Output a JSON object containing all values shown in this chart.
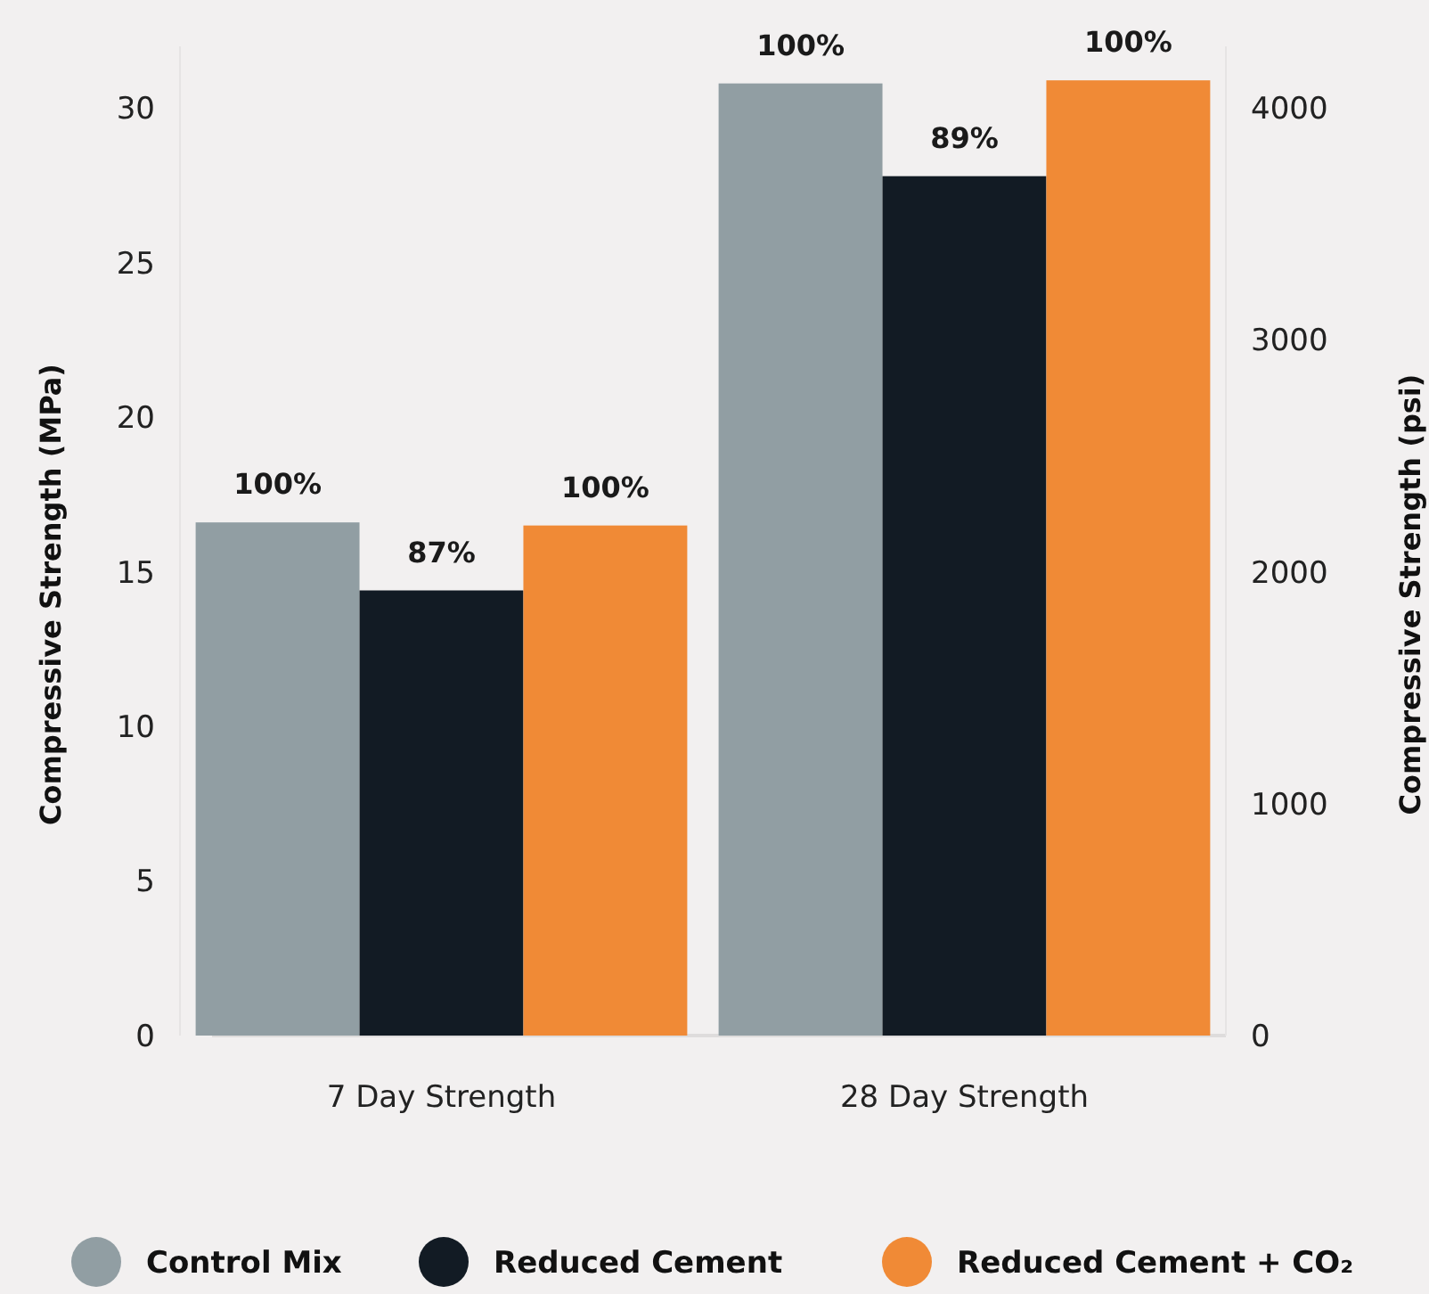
{
  "chart_data": {
    "type": "bar",
    "ylabel": "Compressive Strength (MPa)",
    "y2label": "Compressive Strength (psi)",
    "categories": [
      "7 Day Strength",
      "28 Day Strength"
    ],
    "series": [
      {
        "name": "Control Mix",
        "color": "#919ea3",
        "values": [
          16.6,
          30.8
        ]
      },
      {
        "name": "Reduced Cement",
        "color": "#121b24",
        "values": [
          14.4,
          27.8
        ]
      },
      {
        "name": "Reduced Cement + CO₂",
        "color": "#f08a36",
        "values": [
          16.5,
          30.9
        ]
      }
    ],
    "annotations": [
      "100%",
      {
        "text": "87%",
        "x": "7 Day Strength",
        "y": 14.4
      },
      "100%",
      "100%",
      {
        "text": "89%",
        "x": "28 Day Strength",
        "y": 27.8
      },
      "100%"
    ],
    "ylim": [
      0,
      32
    ],
    "yticks": [
      0,
      5,
      10,
      15,
      20,
      25,
      30
    ],
    "y2lim": [
      0,
      4267
    ],
    "y2ticks": [
      0,
      1000,
      2000,
      3000,
      4000
    ],
    "grid": false,
    "legend": "bottom"
  }
}
